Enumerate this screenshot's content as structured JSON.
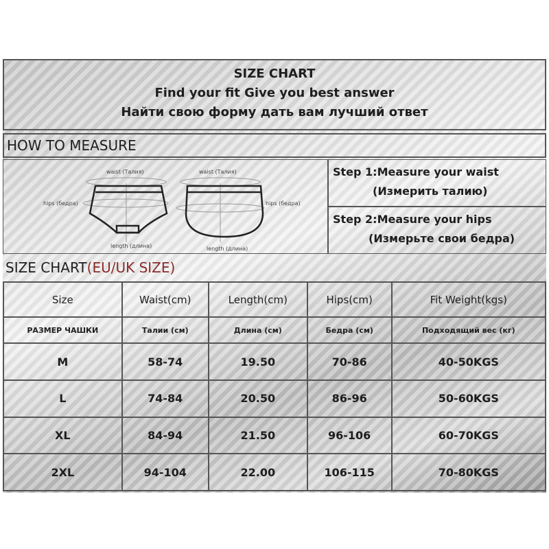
{
  "header": {
    "title": "SIZE CHART",
    "line1": "Find your fit Give you best answer",
    "line2": "Найти свою форму дать вам лучший ответ"
  },
  "measure": {
    "title": "HOW TO MEASURE",
    "diagram": {
      "waist": "waist (Талия)",
      "hips": "hips (бедра)",
      "length": "length (длина)"
    },
    "steps": [
      {
        "en": "Step 1:Measure your waist",
        "ru": "(Измерить талию)"
      },
      {
        "en": "Step 2:Measure your hips",
        "ru": "(Измерьте свои бедра)"
      }
    ]
  },
  "chart": {
    "title": "SIZE CHART",
    "title_accent": "(EU/UK SIZE)",
    "accent_color": "#8b2a2a",
    "headers": [
      "Size",
      "Waist(cm)",
      "Length(cm)",
      "Hips(cm)",
      "Fit  Weight(kgs)"
    ],
    "subheaders": [
      "РАЗМЕР ЧАШКИ",
      "Талии (см)",
      "Длина (см)",
      "Бедра (см)",
      "Подходящий вес (кг)"
    ],
    "rows": [
      [
        "M",
        "58-74",
        "19.50",
        "70-86",
        "40-50KGS"
      ],
      [
        "L",
        "74-84",
        "20.50",
        "86-96",
        "50-60KGS"
      ],
      [
        "XL",
        "84-94",
        "21.50",
        "96-106",
        "60-70KGS"
      ],
      [
        "2XL",
        "94-104",
        "22.00",
        "106-115",
        "70-80KGS"
      ]
    ]
  }
}
